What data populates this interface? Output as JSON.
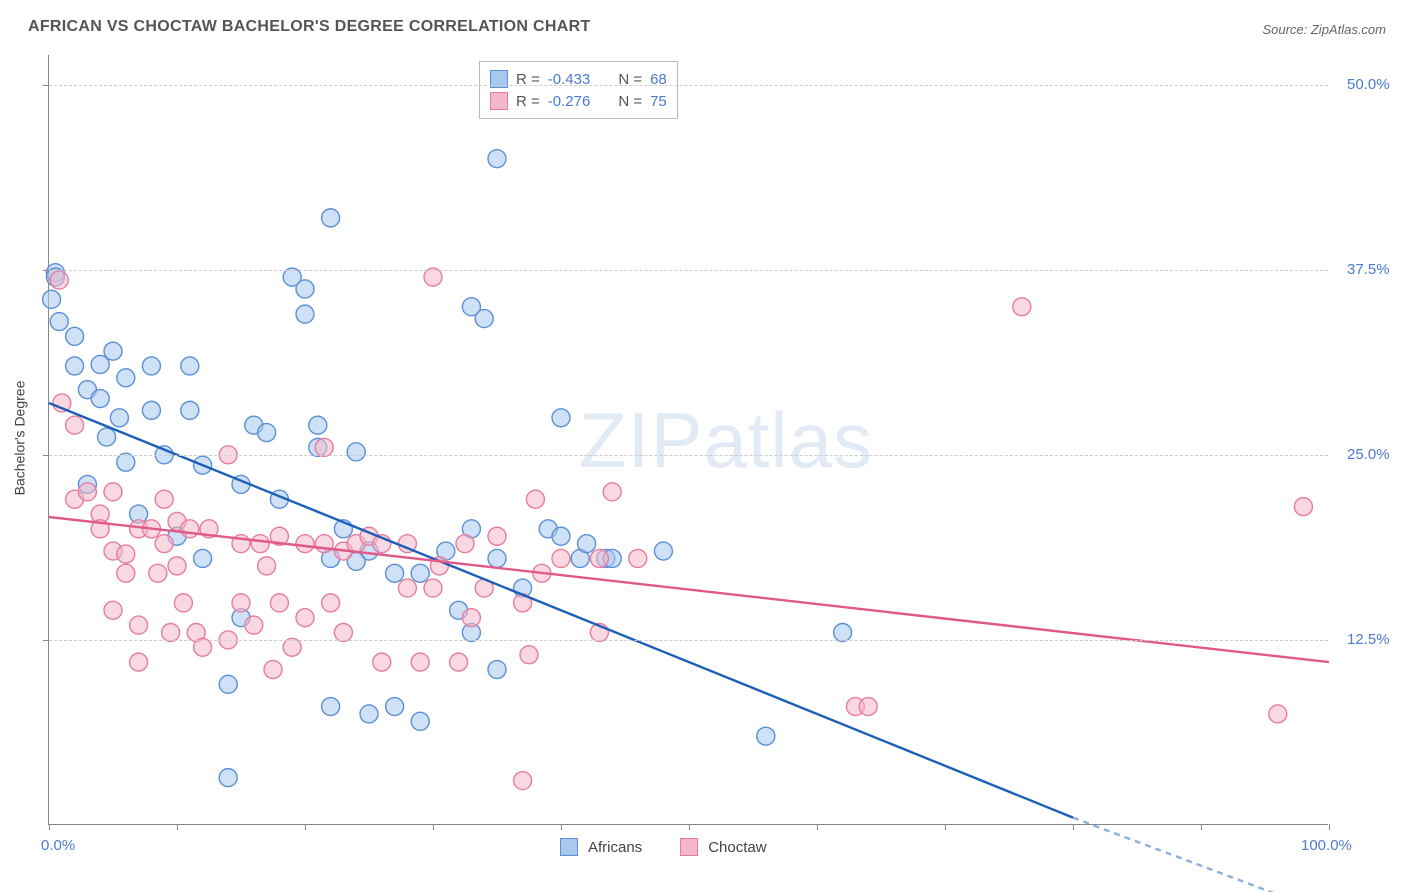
{
  "title": "AFRICAN VS CHOCTAW BACHELOR'S DEGREE CORRELATION CHART",
  "source_prefix": "Source: ",
  "source_name": "ZipAtlas.com",
  "y_axis_title": "Bachelor's Degree",
  "watermark": {
    "part1": "ZIP",
    "part2": "atlas"
  },
  "chart": {
    "type": "scatter",
    "xlim": [
      0,
      100
    ],
    "ylim": [
      0,
      52
    ],
    "x_ticks": [
      0,
      10,
      20,
      30,
      40,
      50,
      60,
      70,
      80,
      90,
      100
    ],
    "x_tick_labels": {
      "0": "0.0%",
      "100": "100.0%"
    },
    "y_gridlines": [
      12.5,
      25.0,
      37.5,
      50.0
    ],
    "y_tick_labels": [
      "12.5%",
      "25.0%",
      "37.5%",
      "50.0%"
    ],
    "background_color": "#ffffff",
    "grid_color": "#cccccc",
    "axis_color": "#888888",
    "tick_label_color": "#4a7bd0",
    "marker_radius": 9,
    "marker_stroke_width": 1.4,
    "trend_line_width": 2.4
  },
  "series": [
    {
      "name": "Africans",
      "fill": "#a8c8ee",
      "fill_opacity": 0.55,
      "stroke": "#5b8fd8",
      "trend_color": "#1b5fb8",
      "trend": {
        "x1": 0,
        "y1": 28.5,
        "x2": 80,
        "y2": 0.5,
        "dash_after_x": 80,
        "dash_to_x": 100,
        "dash_to_y": -6
      },
      "points": [
        [
          0.5,
          37.3
        ],
        [
          0.5,
          37.0
        ],
        [
          0.2,
          35.5
        ],
        [
          0.8,
          34.0
        ],
        [
          2,
          33.0
        ],
        [
          2,
          31.0
        ],
        [
          3,
          29.4
        ],
        [
          4,
          31.1
        ],
        [
          4,
          28.8
        ],
        [
          5,
          32.0
        ],
        [
          6,
          30.2
        ],
        [
          5.5,
          27.5
        ],
        [
          6,
          24.5
        ],
        [
          8,
          31.0
        ],
        [
          8,
          28.0
        ],
        [
          11,
          31.0
        ],
        [
          11,
          28.0
        ],
        [
          12,
          24.3
        ],
        [
          12,
          18.0
        ],
        [
          15,
          23.0
        ],
        [
          15,
          14.0
        ],
        [
          16,
          27.0
        ],
        [
          17,
          26.5
        ],
        [
          18,
          22.0
        ],
        [
          14,
          9.5
        ],
        [
          14,
          3.2
        ],
        [
          19,
          37.0
        ],
        [
          20,
          36.2
        ],
        [
          20,
          34.5
        ],
        [
          21,
          27.0
        ],
        [
          21,
          25.5
        ],
        [
          22,
          18.0
        ],
        [
          22,
          8.0
        ],
        [
          23,
          20.0
        ],
        [
          24,
          25.2
        ],
        [
          25,
          18.5
        ],
        [
          25,
          7.5
        ],
        [
          27,
          17.0
        ],
        [
          27,
          8.0
        ],
        [
          29,
          17.0
        ],
        [
          29,
          7.0
        ],
        [
          31,
          18.5
        ],
        [
          32,
          14.5
        ],
        [
          33,
          35.0
        ],
        [
          33,
          20.0
        ],
        [
          33,
          13.0
        ],
        [
          35,
          45.0
        ],
        [
          35,
          10.5
        ],
        [
          35,
          18.0
        ],
        [
          37,
          16.0
        ],
        [
          39,
          20.0
        ],
        [
          40,
          19.5
        ],
        [
          40,
          27.5
        ],
        [
          41.5,
          18.0
        ],
        [
          42,
          19.0
        ],
        [
          43.5,
          18.0
        ],
        [
          44,
          18.0
        ],
        [
          48,
          18.5
        ],
        [
          56,
          6.0
        ],
        [
          62,
          13.0
        ],
        [
          24,
          17.8
        ],
        [
          10,
          19.5
        ],
        [
          7,
          21.0
        ],
        [
          3,
          23.0
        ],
        [
          9,
          25.0
        ],
        [
          4.5,
          26.2
        ],
        [
          22,
          41.0
        ],
        [
          34,
          34.2
        ]
      ]
    },
    {
      "name": "Choctaw",
      "fill": "#f4b8c8",
      "fill_opacity": 0.55,
      "stroke": "#e77ca0",
      "trend_color": "#e05a88",
      "trend": {
        "x1": 0,
        "y1": 20.8,
        "x2": 100,
        "y2": 11.0
      },
      "points": [
        [
          0.8,
          36.8
        ],
        [
          1,
          28.5
        ],
        [
          2,
          27.0
        ],
        [
          2,
          22.0
        ],
        [
          3,
          22.5
        ],
        [
          4,
          21.0
        ],
        [
          4,
          20.0
        ],
        [
          5,
          22.5
        ],
        [
          5,
          18.5
        ],
        [
          5,
          14.5
        ],
        [
          6,
          18.3
        ],
        [
          6,
          17.0
        ],
        [
          7,
          20.0
        ],
        [
          7,
          13.5
        ],
        [
          7,
          11.0
        ],
        [
          8,
          20.0
        ],
        [
          8.5,
          17.0
        ],
        [
          9,
          22.0
        ],
        [
          9,
          19.0
        ],
        [
          9.5,
          13.0
        ],
        [
          10,
          20.5
        ],
        [
          10,
          17.5
        ],
        [
          10.5,
          15.0
        ],
        [
          11,
          20.0
        ],
        [
          11.5,
          13.0
        ],
        [
          12,
          12.0
        ],
        [
          12.5,
          20.0
        ],
        [
          14,
          25.0
        ],
        [
          14,
          12.5
        ],
        [
          15,
          19.0
        ],
        [
          15,
          15.0
        ],
        [
          16,
          13.5
        ],
        [
          16.5,
          19.0
        ],
        [
          17,
          17.5
        ],
        [
          17.5,
          10.5
        ],
        [
          18,
          19.5
        ],
        [
          18,
          15.0
        ],
        [
          19,
          12.0
        ],
        [
          20,
          14.0
        ],
        [
          20,
          19.0
        ],
        [
          21.5,
          25.5
        ],
        [
          21.5,
          19.0
        ],
        [
          22,
          15.0
        ],
        [
          23,
          18.5
        ],
        [
          23,
          13.0
        ],
        [
          24,
          19.0
        ],
        [
          25,
          19.5
        ],
        [
          26,
          19.0
        ],
        [
          26,
          11.0
        ],
        [
          28,
          16.0
        ],
        [
          28,
          19.0
        ],
        [
          29,
          11.0
        ],
        [
          30,
          16.0
        ],
        [
          30,
          37.0
        ],
        [
          30.5,
          17.5
        ],
        [
          32,
          11.0
        ],
        [
          32.5,
          19.0
        ],
        [
          33,
          14.0
        ],
        [
          34,
          16.0
        ],
        [
          35,
          19.5
        ],
        [
          37,
          3.0
        ],
        [
          37,
          15.0
        ],
        [
          37.5,
          11.5
        ],
        [
          38,
          22.0
        ],
        [
          38.5,
          17.0
        ],
        [
          40,
          18.0
        ],
        [
          43,
          13.0
        ],
        [
          43,
          18.0
        ],
        [
          44,
          22.5
        ],
        [
          46,
          18.0
        ],
        [
          63,
          8.0
        ],
        [
          64,
          8.0
        ],
        [
          76,
          35.0
        ],
        [
          96,
          7.5
        ],
        [
          98,
          21.5
        ]
      ]
    }
  ],
  "legend_top": {
    "rows": [
      {
        "swatch_fill": "#a8c8ee",
        "swatch_stroke": "#5b8fd8",
        "r_label": "R = ",
        "r_val": "-0.433",
        "n_label": "N = ",
        "n_val": "68"
      },
      {
        "swatch_fill": "#f4b8c8",
        "swatch_stroke": "#e77ca0",
        "r_label": "R = ",
        "r_val": "-0.276",
        "n_label": "N = ",
        "n_val": "75"
      }
    ]
  },
  "legend_bottom": {
    "items": [
      {
        "swatch_fill": "#a8c8ee",
        "swatch_stroke": "#5b8fd8",
        "label": "Africans"
      },
      {
        "swatch_fill": "#f4b8c8",
        "swatch_stroke": "#e77ca0",
        "label": "Choctaw"
      }
    ]
  }
}
